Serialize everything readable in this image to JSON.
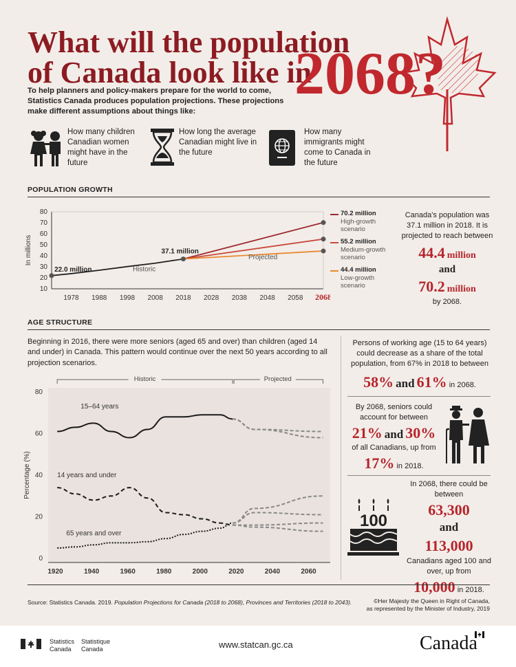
{
  "title": {
    "line1": "What will the population",
    "line2": "of Canada look like in",
    "year": "2068?"
  },
  "intro": "To help planners and policy-makers prepare for the world to come, Statistics Canada produces population projections. These projections make different assumptions about things like:",
  "assumptions": [
    {
      "icon": "children-icon",
      "text": "How many children Canadian women might have in the future"
    },
    {
      "icon": "hourglass-icon",
      "text": "How long the average Canadian might live in the future"
    },
    {
      "icon": "passport-icon",
      "text": "How many immigrants might come to Canada in the future"
    }
  ],
  "population_growth": {
    "heading": "POPULATION GROWTH",
    "side_text1": "Canada's population was 37.1 million in 2018. It is projected to reach between",
    "side_low": "44.4",
    "side_and": "and",
    "side_high": "70.2",
    "million_word": "million",
    "side_text2": "by 2068.",
    "legend": [
      {
        "value": "70.2 million",
        "label1": "High-growth",
        "label2": "scenario",
        "color": "#9e2a2f"
      },
      {
        "value": "55.2 million",
        "label1": "Medium-growth",
        "label2": "scenario",
        "color": "#c94a3a"
      },
      {
        "value": "44.4 million",
        "label1": "Low-growth",
        "label2": "scenario",
        "color": "#e8892f"
      }
    ]
  },
  "age_structure": {
    "heading": "AGE STRUCTURE",
    "intro": "Beginning in 2016, there were more seniors (aged 65 and over) than children (aged 14 and under) in Canada. This pattern would continue over the next 50 years according to all projection scenarios.",
    "working": {
      "text1": "Persons of working age (15 to 64 years) could decrease as a share of the total population, from 67% in 2018 to between",
      "v1": "58%",
      "and": "and",
      "v2": "61%",
      "text2": "in 2068."
    },
    "seniors": {
      "text1": "By 2068, seniors could account for between",
      "v1": "21%",
      "and": "and",
      "v2": "30%",
      "text2": "of all Canadians, up from",
      "v3": "17%",
      "text3": "in 2018."
    },
    "centenarians": {
      "text1": "In 2068, there could be between",
      "v1": "63,300",
      "and": "and",
      "v2": "113,000",
      "text2": "Canadians aged 100 and over, up from",
      "v3": "10,000",
      "text3": "in 2018.",
      "cake_text": "100"
    }
  },
  "footer": {
    "source_prefix": "Source: Statistics Canada. 2019.",
    "source_italic": "Population Projections for Canada (2018 to 2068), Provinces and Territories (2018 to 2043).",
    "copyright1": "©Her Majesty the Queen in Right of Canada,",
    "copyright2": "as represented by the Minister of Industry, 2019",
    "org_en1": "Statistics",
    "org_en2": "Canada",
    "org_fr1": "Statistique",
    "org_fr2": "Canada",
    "url": "www.statcan.gc.ca",
    "wordmark": "Canada"
  },
  "chart_data": [
    {
      "type": "line",
      "ylabel": "In millions",
      "ylim": [
        10,
        80
      ],
      "yticks": [
        10,
        20,
        30,
        40,
        50,
        60,
        70,
        80
      ],
      "xticks": [
        "1978",
        "1988",
        "1998",
        "2008",
        "2018",
        "2028",
        "2038",
        "2048",
        "2058",
        "2068"
      ],
      "xlim": [
        1971,
        2068
      ],
      "annotations": {
        "start": "22.0 million",
        "mid": "37.1 million",
        "historic": "Historic",
        "projected": "Projected"
      },
      "series": [
        {
          "name": "Historic",
          "x": [
            1971,
            1978,
            1988,
            1998,
            2008,
            2018
          ],
          "values": [
            22.0,
            23.8,
            26.9,
            30.2,
            33.3,
            37.1
          ]
        },
        {
          "name": "High-growth scenario",
          "x": [
            2018,
            2068
          ],
          "values": [
            37.1,
            70.2
          ]
        },
        {
          "name": "Medium-growth scenario",
          "x": [
            2018,
            2068
          ],
          "values": [
            37.1,
            55.2
          ]
        },
        {
          "name": "Low-growth scenario",
          "x": [
            2018,
            2068
          ],
          "values": [
            37.1,
            44.4
          ]
        }
      ]
    },
    {
      "type": "line",
      "ylabel": "Percentage (%)",
      "ylim": [
        0,
        80
      ],
      "yticks": [
        0,
        20,
        40,
        60,
        80
      ],
      "xticks": [
        1920,
        1940,
        1960,
        1980,
        2000,
        2020,
        2040,
        2060
      ],
      "xlim": [
        1916,
        2072
      ],
      "period_labels": {
        "historic": "Historic",
        "projected": "Projected"
      },
      "series": [
        {
          "name": "15–64 years",
          "x": [
            1921,
            1931,
            1941,
            1951,
            1961,
            1971,
            1981,
            1991,
            2001,
            2011,
            2018
          ],
          "values": [
            61,
            63,
            65,
            61,
            58,
            62,
            68,
            68,
            69,
            69,
            67
          ],
          "projections": [
            {
              "x": [
                2018,
                2030,
                2068
              ],
              "values": [
                67,
                62,
                58
              ]
            },
            {
              "x": [
                2018,
                2030,
                2068
              ],
              "values": [
                67,
                62,
                61
              ]
            }
          ]
        },
        {
          "name": "14 years and under",
          "x": [
            1921,
            1931,
            1941,
            1951,
            1961,
            1971,
            1981,
            1991,
            2001,
            2011,
            2018
          ],
          "values": [
            34,
            31,
            28,
            30,
            34,
            29,
            22,
            21,
            19,
            17,
            16
          ],
          "projections": [
            {
              "x": [
                2018,
                2030,
                2068
              ],
              "values": [
                16,
                15,
                13
              ]
            },
            {
              "x": [
                2018,
                2030,
                2068
              ],
              "values": [
                16,
                16,
                17
              ]
            }
          ]
        },
        {
          "name": "65 years and over",
          "x": [
            1921,
            1931,
            1941,
            1951,
            1961,
            1971,
            1981,
            1991,
            2001,
            2011,
            2018
          ],
          "values": [
            5,
            5.5,
            6.5,
            7.5,
            7.5,
            8,
            9.5,
            11.5,
            13,
            14.5,
            17
          ],
          "projections": [
            {
              "x": [
                2018,
                2030,
                2068
              ],
              "values": [
                17,
                22,
                21
              ]
            },
            {
              "x": [
                2018,
                2030,
                2068
              ],
              "values": [
                17,
                24,
                30
              ]
            }
          ]
        }
      ]
    }
  ]
}
